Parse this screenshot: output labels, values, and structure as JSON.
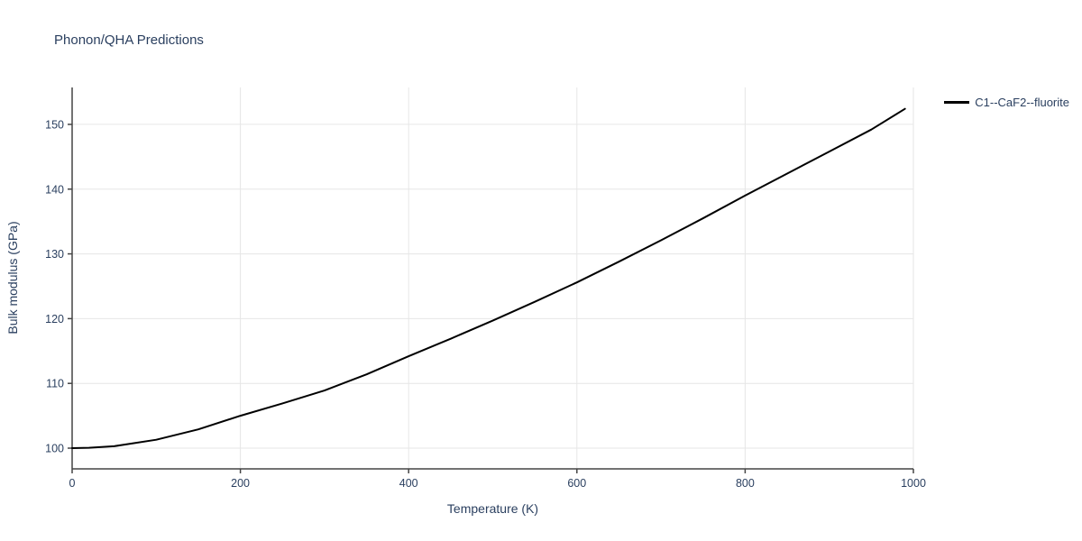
{
  "page": {
    "title": "Phonon/QHA Predictions"
  },
  "chart_data": {
    "type": "line",
    "title": "Phonon/QHA Predictions",
    "xlabel": "Temperature (K)",
    "ylabel": "Bulk modulus (GPa)",
    "xlim": [
      0,
      1000
    ],
    "ylim": [
      96.8,
      155.7
    ],
    "x_ticks": [
      0,
      200,
      400,
      600,
      800,
      1000
    ],
    "y_ticks": [
      100,
      110,
      120,
      130,
      140,
      150
    ],
    "grid": true,
    "legend": {
      "position": "top-right",
      "entries": [
        "C1--CaF2--fluorite"
      ]
    },
    "series": [
      {
        "name": "C1--CaF2--fluorite",
        "color": "#000000",
        "line_width": 2,
        "x": [
          0,
          20,
          50,
          100,
          150,
          200,
          250,
          300,
          350,
          400,
          450,
          500,
          550,
          600,
          650,
          700,
          750,
          800,
          850,
          900,
          950,
          990
        ],
        "y": [
          100.0,
          100.05,
          100.3,
          101.3,
          102.9,
          105.0,
          106.9,
          108.9,
          111.4,
          114.2,
          116.9,
          119.7,
          122.6,
          125.6,
          128.8,
          132.1,
          135.5,
          139.0,
          142.4,
          145.8,
          149.2,
          152.4
        ]
      }
    ]
  },
  "colors": {
    "text": "#2a3f5f",
    "axis": "#444444",
    "grid": "#e6e6e6",
    "background": "#ffffff",
    "series": "#000000"
  }
}
